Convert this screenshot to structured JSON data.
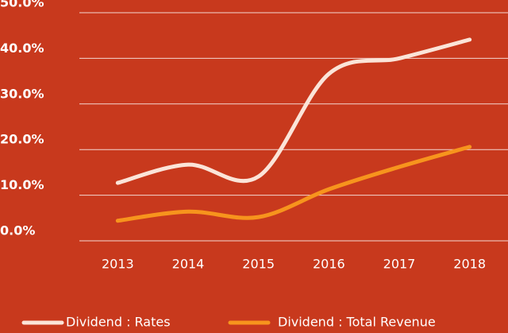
{
  "chart_data": {
    "type": "line",
    "categories": [
      "2013",
      "2014",
      "2015",
      "2016",
      "2017",
      "2018"
    ],
    "series": [
      {
        "name": "Dividend : Rates",
        "color": "#fbe4d8",
        "values": [
          12.7,
          16.7,
          14.1,
          36.6,
          40,
          44.1
        ]
      },
      {
        "name": "Dividend : Total Revenue",
        "color": "#f7941d",
        "values": [
          4.4,
          6.4,
          5.2,
          11.3,
          16.2,
          20.6
        ]
      }
    ],
    "ylim": [
      0,
      50
    ],
    "yticks": [
      {
        "value": 0,
        "label": "0.0%"
      },
      {
        "value": 10,
        "label": "10.0%"
      },
      {
        "value": 20,
        "label": "20.0%"
      },
      {
        "value": 30,
        "label": "30.0%"
      },
      {
        "value": 40,
        "label": "40.0%"
      },
      {
        "value": 50,
        "label": "50.0%"
      }
    ],
    "grid": true,
    "smooth": true,
    "background": "#c8391d"
  }
}
